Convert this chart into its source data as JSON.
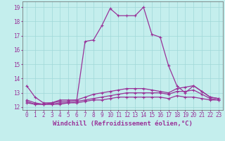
{
  "xlabel": "Windchill (Refroidissement éolien,°C)",
  "background_color": "#c4eeed",
  "grid_color": "#a0d8d8",
  "line_color": "#993399",
  "xlim": [
    -0.5,
    23.5
  ],
  "ylim": [
    11.8,
    19.4
  ],
  "yticks": [
    12,
    13,
    14,
    15,
    16,
    17,
    18,
    19
  ],
  "xticks": [
    0,
    1,
    2,
    3,
    4,
    5,
    6,
    7,
    8,
    9,
    10,
    11,
    12,
    13,
    14,
    15,
    16,
    17,
    18,
    19,
    20,
    21,
    22,
    23
  ],
  "curve1_x": [
    0,
    1,
    2,
    3,
    4,
    5,
    6,
    7,
    8,
    9,
    10,
    11,
    12,
    13,
    14,
    15,
    16,
    17,
    18,
    19,
    20,
    21,
    22,
    23
  ],
  "curve1_y": [
    13.5,
    12.7,
    12.3,
    12.3,
    12.5,
    12.5,
    12.5,
    16.6,
    16.7,
    17.7,
    18.9,
    18.4,
    18.4,
    18.4,
    19.0,
    17.1,
    16.9,
    14.9,
    13.5,
    13.0,
    13.5,
    13.1,
    12.7,
    12.6
  ],
  "curve2_x": [
    0,
    1,
    2,
    3,
    4,
    5,
    6,
    7,
    8,
    9,
    10,
    11,
    12,
    13,
    14,
    15,
    16,
    17,
    18,
    19,
    20,
    21,
    22,
    23
  ],
  "curve2_y": [
    12.5,
    12.3,
    12.2,
    12.3,
    12.4,
    12.4,
    12.5,
    12.7,
    12.9,
    13.0,
    13.1,
    13.2,
    13.3,
    13.3,
    13.3,
    13.2,
    13.1,
    13.0,
    13.3,
    13.4,
    13.5,
    13.1,
    12.7,
    12.6
  ],
  "curve3_x": [
    0,
    1,
    2,
    3,
    4,
    5,
    6,
    7,
    8,
    9,
    10,
    11,
    12,
    13,
    14,
    15,
    16,
    17,
    18,
    19,
    20,
    21,
    22,
    23
  ],
  "curve3_y": [
    12.4,
    12.2,
    12.2,
    12.2,
    12.3,
    12.3,
    12.4,
    12.5,
    12.6,
    12.7,
    12.8,
    12.9,
    13.0,
    13.0,
    13.0,
    13.0,
    13.0,
    12.9,
    13.1,
    13.1,
    13.2,
    12.9,
    12.6,
    12.5
  ],
  "curve4_x": [
    0,
    1,
    2,
    3,
    4,
    5,
    6,
    7,
    8,
    9,
    10,
    11,
    12,
    13,
    14,
    15,
    16,
    17,
    18,
    19,
    20,
    21,
    22,
    23
  ],
  "curve4_y": [
    12.3,
    12.2,
    12.2,
    12.2,
    12.2,
    12.3,
    12.3,
    12.4,
    12.5,
    12.5,
    12.6,
    12.7,
    12.7,
    12.7,
    12.7,
    12.7,
    12.7,
    12.6,
    12.8,
    12.7,
    12.7,
    12.6,
    12.5,
    12.5
  ],
  "marker": "+",
  "markersize": 3,
  "linewidth": 0.9,
  "xlabel_fontsize": 6.5,
  "tick_fontsize": 5.5
}
